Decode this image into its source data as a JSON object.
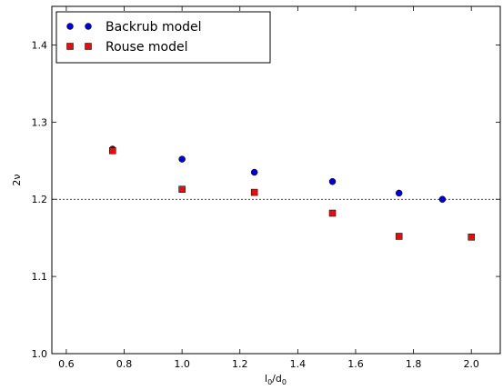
{
  "chart_data": {
    "type": "scatter",
    "xlabel": "l0/d0",
    "xlabel_main": "l",
    "xlabel_sub1": "0",
    "xlabel_mid": "/d",
    "xlabel_sub2": "0",
    "ylabel": "2ν",
    "xlim": [
      0.55,
      2.1
    ],
    "ylim": [
      1.0,
      1.45
    ],
    "xticks": [
      0.6,
      0.8,
      1.0,
      1.2,
      1.4,
      1.6,
      1.8,
      2.0
    ],
    "xtick_labels": [
      "0.6",
      "0.8",
      "1.0",
      "1.2",
      "1.4",
      "1.6",
      "1.8",
      "2.0"
    ],
    "yticks": [
      1.0,
      1.1,
      1.2,
      1.3,
      1.4
    ],
    "ytick_labels": [
      "1.0",
      "1.1",
      "1.2",
      "1.3",
      "1.4"
    ],
    "grid": false,
    "reference_line": {
      "y": 1.2,
      "style": "dotted"
    },
    "legend_position": "top-left",
    "series": [
      {
        "name": "Backrub model",
        "marker": "circle",
        "color": "#0000cc",
        "x": [
          0.76,
          1.0,
          1.25,
          1.52,
          1.75,
          1.9
        ],
        "y": [
          1.265,
          1.252,
          1.235,
          1.223,
          1.208,
          1.2
        ]
      },
      {
        "name": "Rouse model",
        "marker": "square",
        "color": "#dd1111",
        "x": [
          0.76,
          1.0,
          1.25,
          1.52,
          1.75,
          2.0
        ],
        "y": [
          1.263,
          1.213,
          1.209,
          1.182,
          1.152,
          1.151
        ]
      }
    ]
  }
}
